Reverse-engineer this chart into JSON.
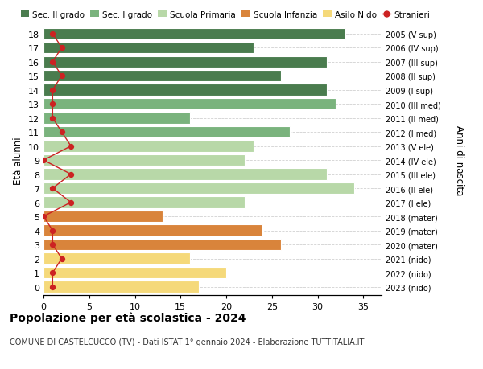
{
  "ages": [
    18,
    17,
    16,
    15,
    14,
    13,
    12,
    11,
    10,
    9,
    8,
    7,
    6,
    5,
    4,
    3,
    2,
    1,
    0
  ],
  "right_labels": [
    "2005 (V sup)",
    "2006 (IV sup)",
    "2007 (III sup)",
    "2008 (II sup)",
    "2009 (I sup)",
    "2010 (III med)",
    "2011 (II med)",
    "2012 (I med)",
    "2013 (V ele)",
    "2014 (IV ele)",
    "2015 (III ele)",
    "2016 (II ele)",
    "2017 (I ele)",
    "2018 (mater)",
    "2019 (mater)",
    "2020 (mater)",
    "2021 (nido)",
    "2022 (nido)",
    "2023 (nido)"
  ],
  "bar_values": [
    33,
    23,
    31,
    26,
    31,
    32,
    16,
    27,
    23,
    22,
    31,
    34,
    22,
    13,
    24,
    26,
    16,
    20,
    17
  ],
  "bar_colors": [
    "#4a7c4e",
    "#4a7c4e",
    "#4a7c4e",
    "#4a7c4e",
    "#4a7c4e",
    "#7ab37d",
    "#7ab37d",
    "#7ab37d",
    "#b8d8a8",
    "#b8d8a8",
    "#b8d8a8",
    "#b8d8a8",
    "#b8d8a8",
    "#d9843b",
    "#d9843b",
    "#d9843b",
    "#f5d97a",
    "#f5d97a",
    "#f5d97a"
  ],
  "stranieri_values": [
    1,
    2,
    1,
    2,
    1,
    1,
    1,
    2,
    3,
    0,
    3,
    1,
    3,
    0,
    1,
    1,
    2,
    1,
    1
  ],
  "title": "Popolazione per età scolastica - 2024",
  "subtitle": "COMUNE DI CASTELCUCCO (TV) - Dati ISTAT 1° gennaio 2024 - Elaborazione TUTTITALIA.IT",
  "ylabel": "Età alunni",
  "right_ylabel": "Anni di nascita",
  "xlim": [
    0,
    37
  ],
  "xticks": [
    0,
    5,
    10,
    15,
    20,
    25,
    30,
    35
  ],
  "legend_labels": [
    "Sec. II grado",
    "Sec. I grado",
    "Scuola Primaria",
    "Scuola Infanzia",
    "Asilo Nido",
    "Stranieri"
  ],
  "legend_colors": [
    "#4a7c4e",
    "#7ab37d",
    "#b8d8a8",
    "#d9843b",
    "#f5d97a",
    "#cc2222"
  ],
  "color_stranieri": "#cc2222",
  "background_color": "#ffffff",
  "grid_color": "#cccccc"
}
